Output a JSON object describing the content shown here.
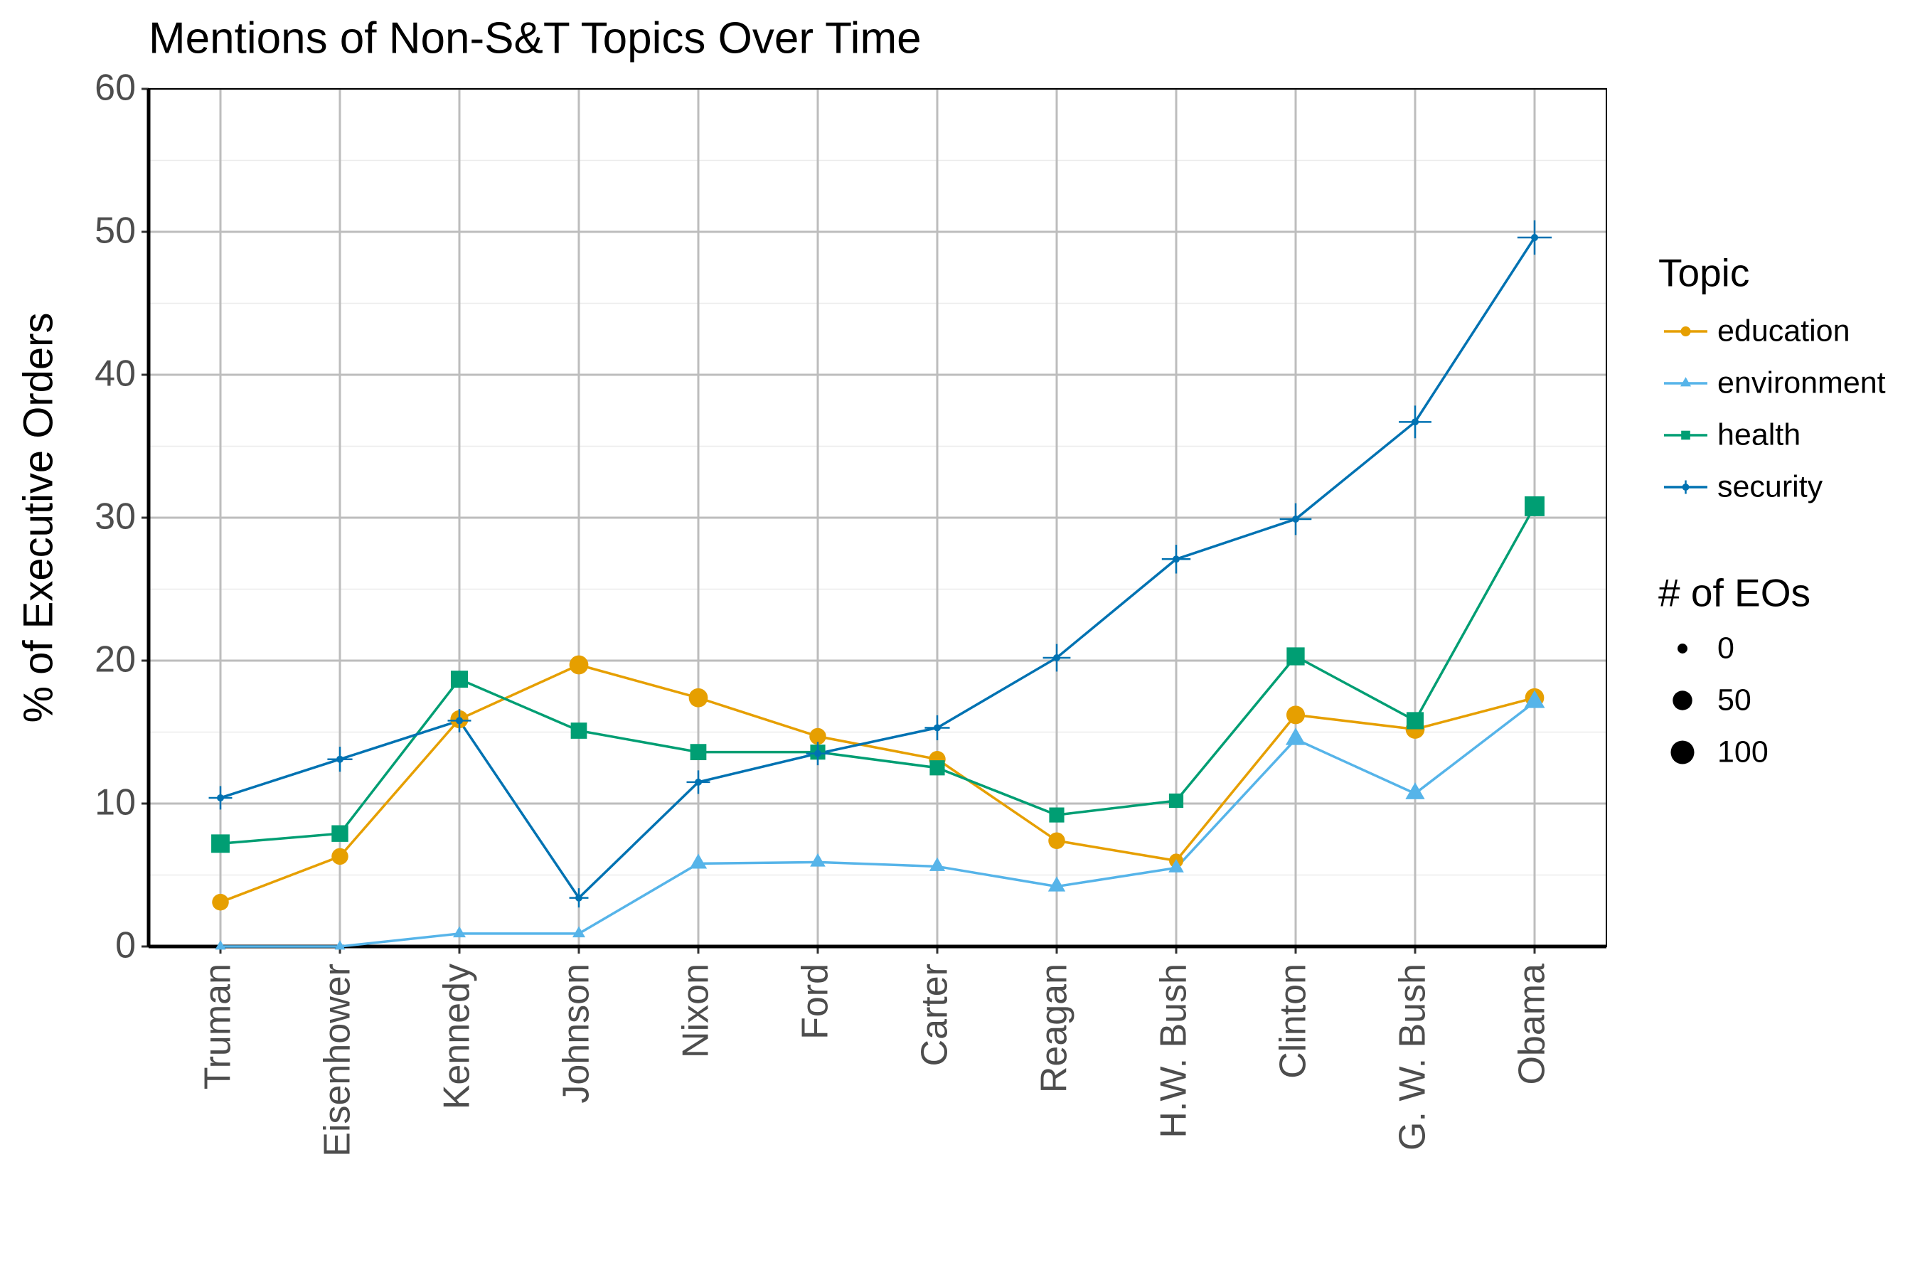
{
  "chart_data": {
    "type": "line",
    "title": "Mentions of Non-S&T Topics Over Time",
    "y_label": "% of Executive Orders",
    "categories": [
      "Truman",
      "Eisenhower",
      "Kennedy",
      "Johnson",
      "Nixon",
      "Ford",
      "Carter",
      "Reagan",
      "H.W. Bush",
      "Clinton",
      "G. W. Bush",
      "Obama"
    ],
    "series": [
      {
        "name": "education",
        "color": "#E69F00",
        "shape": "circle",
        "values": [
          3.1,
          6.3,
          15.9,
          19.7,
          17.4,
          14.7,
          13.1,
          7.4,
          6.0,
          16.2,
          15.2,
          17.4
        ],
        "sizes": [
          25,
          25,
          35,
          45,
          45,
          25,
          25,
          25,
          10,
          40,
          45,
          45
        ]
      },
      {
        "name": "environment",
        "color": "#56B4E9",
        "shape": "triangle",
        "values": [
          0,
          0,
          0.9,
          0.9,
          5.8,
          5.9,
          5.6,
          4.2,
          5.5,
          14.5,
          10.7,
          17.1
        ],
        "sizes": [
          0,
          0,
          2,
          2,
          20,
          10,
          12,
          20,
          10,
          40,
          35,
          45
        ]
      },
      {
        "name": "health",
        "color": "#009E73",
        "shape": "square",
        "values": [
          7.2,
          7.9,
          18.7,
          15.1,
          13.6,
          13.6,
          12.5,
          9.2,
          10.2,
          20.3,
          15.8,
          30.8
        ],
        "sizes": [
          60,
          40,
          45,
          35,
          35,
          25,
          25,
          25,
          20,
          55,
          45,
          80
        ]
      },
      {
        "name": "security",
        "color": "#0072B2",
        "shape": "plus",
        "values": [
          10.4,
          13.1,
          15.8,
          3.4,
          11.5,
          13.5,
          15.3,
          20.2,
          27.1,
          29.9,
          36.7,
          49.6
        ],
        "sizes": [
          30,
          40,
          30,
          10,
          30,
          30,
          40,
          60,
          70,
          100,
          110,
          130
        ]
      }
    ],
    "ylim": [
      0,
      60
    ],
    "yticks": [
      0,
      10,
      20,
      30,
      40,
      50,
      60
    ],
    "minor_yticks": [
      5,
      15,
      25,
      35,
      45,
      55
    ],
    "grid": true,
    "legend_title": "Topic",
    "legend": "right",
    "size_legend": {
      "title": "# of EOs",
      "values": [
        0,
        50,
        100
      ]
    }
  }
}
